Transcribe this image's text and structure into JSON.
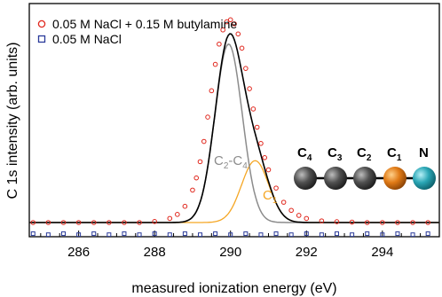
{
  "chart_data": {
    "type": "line",
    "xlabel": "measured ionization energy (eV)",
    "ylabel": "C 1s intensity (arb. units)",
    "xlim": [
      284.7,
      295.5
    ],
    "ylim": [
      -0.07,
      1.08
    ],
    "xticks": [
      286,
      288,
      290,
      292,
      294
    ],
    "xtick_labels": [
      "286",
      "288",
      "290",
      "292",
      "294"
    ],
    "grid": false,
    "legend_position": "top-left",
    "legend": [
      {
        "label": "0.05 M NaCl + 0.15 M butylamine",
        "marker": "open-circle",
        "color": "#e0261c"
      },
      {
        "label": "0.05 M NaCl",
        "marker": "open-square",
        "color": "#2a3a9a"
      }
    ],
    "series": [
      {
        "name": "0.05 M NaCl + 0.15 M butylamine",
        "style": "open-circle markers",
        "color": "#e0261c",
        "x": [
          284.8,
          285.2,
          285.6,
          286.0,
          286.4,
          286.8,
          287.2,
          287.6,
          288.0,
          288.4,
          288.6,
          288.8,
          289.0,
          289.1,
          289.2,
          289.3,
          289.4,
          289.5,
          289.6,
          289.7,
          289.8,
          289.9,
          290.0,
          290.1,
          290.2,
          290.3,
          290.4,
          290.5,
          290.6,
          290.7,
          290.8,
          290.9,
          291.0,
          291.2,
          291.4,
          291.6,
          291.8,
          292.0,
          292.4,
          292.8,
          293.2,
          293.6,
          294.0,
          294.4,
          294.8,
          295.2
        ],
        "y": [
          0.0,
          0.0,
          0.0,
          0.0,
          0.0,
          0.0,
          0.0,
          0.0,
          0.005,
          0.02,
          0.04,
          0.08,
          0.16,
          0.22,
          0.3,
          0.4,
          0.52,
          0.65,
          0.78,
          0.88,
          0.95,
          0.99,
          1.0,
          0.98,
          0.93,
          0.86,
          0.76,
          0.66,
          0.56,
          0.47,
          0.39,
          0.32,
          0.26,
          0.17,
          0.1,
          0.06,
          0.035,
          0.02,
          0.008,
          0.004,
          0.002,
          0.0,
          0.0,
          0.0,
          0.0,
          0.0
        ]
      },
      {
        "name": "0.05 M NaCl",
        "style": "open-square markers",
        "color": "#2a3a9a",
        "x": [
          284.8,
          285.2,
          285.6,
          286.0,
          286.4,
          286.8,
          287.2,
          287.6,
          288.0,
          288.4,
          288.8,
          289.2,
          289.6,
          290.0,
          290.4,
          290.8,
          291.2,
          291.6,
          292.0,
          292.4,
          292.8,
          293.2,
          293.6,
          294.0,
          294.4,
          294.8,
          295.2
        ],
        "y": [
          -0.055,
          -0.06,
          -0.055,
          -0.06,
          -0.055,
          -0.06,
          -0.055,
          -0.06,
          -0.055,
          -0.06,
          -0.055,
          -0.06,
          -0.055,
          -0.06,
          -0.055,
          -0.06,
          -0.055,
          -0.06,
          -0.055,
          -0.06,
          -0.055,
          -0.06,
          -0.055,
          -0.06,
          -0.055,
          -0.06,
          -0.055
        ]
      },
      {
        "name": "fit",
        "style": "solid line",
        "color": "#000000",
        "components": [
          {
            "center": 289.95,
            "amplitude": 0.88,
            "sigma": 0.36
          },
          {
            "center": 290.65,
            "amplitude": 0.305,
            "sigma": 0.36
          }
        ]
      },
      {
        "name": "C2-C4",
        "style": "solid line",
        "color": "#8c8c8c",
        "center": 289.95,
        "amplitude": 0.88,
        "sigma": 0.36
      },
      {
        "name": "C1",
        "style": "solid line",
        "color": "#f5a623",
        "center": 290.65,
        "amplitude": 0.305,
        "sigma": 0.36
      }
    ],
    "annotations": [
      {
        "text": "C",
        "sub": "2",
        "text2": "-C",
        "sub2": "4",
        "color": "#8c8c8c"
      },
      {
        "text": "C",
        "sub": "1",
        "text2": "",
        "sub2": "",
        "color": "#f5a623"
      }
    ],
    "molecule": {
      "atoms": [
        {
          "label": "C",
          "sub": "4",
          "color": "#4a4a4a"
        },
        {
          "label": "C",
          "sub": "3",
          "color": "#4a4a4a"
        },
        {
          "label": "C",
          "sub": "2",
          "color": "#4a4a4a"
        },
        {
          "label": "C",
          "sub": "1",
          "color": "#e07a16"
        },
        {
          "label": "N",
          "sub": "",
          "color": "#2aa6b5"
        }
      ]
    }
  }
}
